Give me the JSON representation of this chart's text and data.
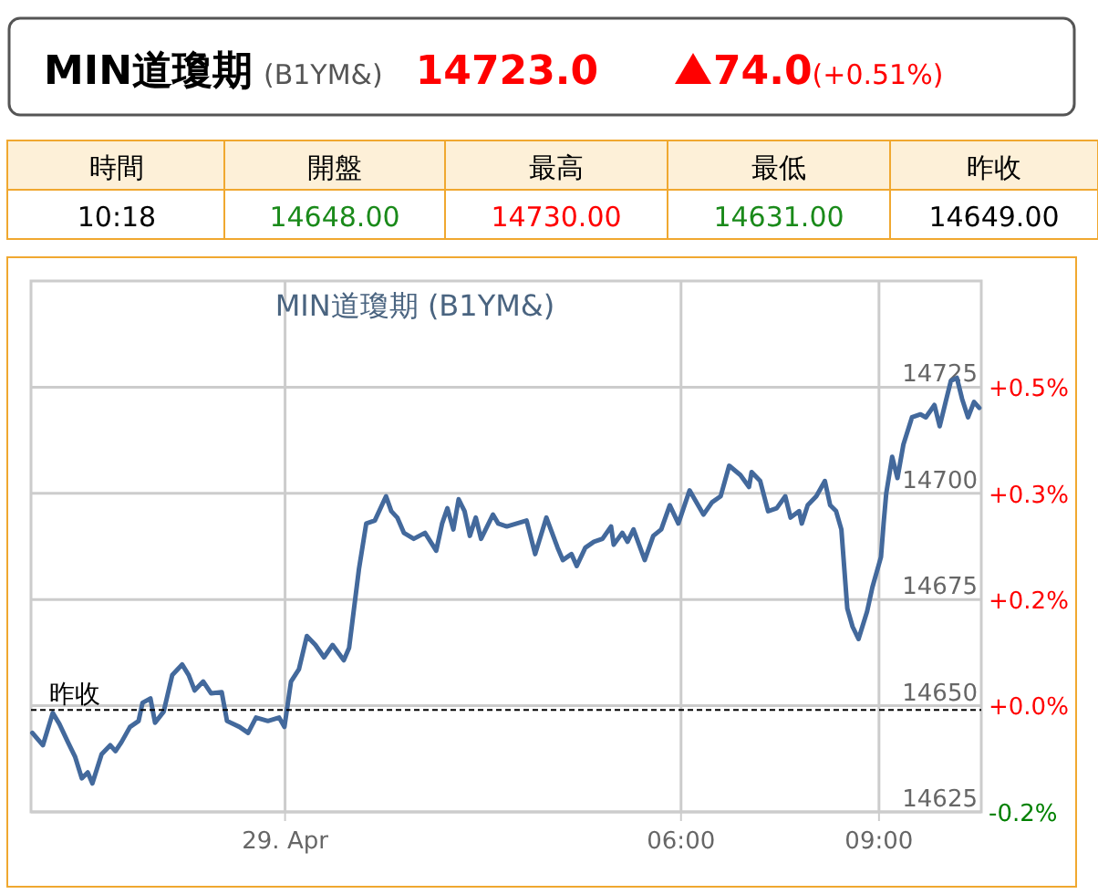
{
  "chart_data": {
    "type": "line",
    "title": "MIN道瓊期 (B1YM&)",
    "annotations": [
      "MIN道瓊期",
      "(B1YM&)",
      "14723.0",
      "74.0",
      "(+0.51%)",
      "時間",
      "開盤",
      "最高",
      "最低",
      "昨收",
      "10:18",
      "14648.00",
      "14730.00",
      "14631.00",
      "14649.00"
    ],
    "xlim": [
      -3.85,
      10.55
    ],
    "xticks": [
      {
        "value": 0,
        "label": "29. Apr"
      },
      {
        "value": 6,
        "label": "06:00"
      },
      {
        "value": 9,
        "label": "09:00"
      }
    ],
    "ylim": [
      14625,
      14750
    ],
    "yticks": [
      14625,
      14650,
      14675,
      14700,
      14725
    ],
    "y2lim": [
      -0.164,
      0.689
    ],
    "y2ticks": [
      {
        "value": -0.164,
        "label": "-0.2%"
      },
      {
        "value": 0.007,
        "label": "+0.0%"
      },
      {
        "value": 0.178,
        "label": "+0.2%"
      },
      {
        "value": 0.348,
        "label": "+0.3%"
      },
      {
        "value": 0.519,
        "label": "+0.5%"
      }
    ],
    "grid": true,
    "ref_lines": [
      {
        "axis": "y",
        "value": 14649,
        "label": "昨收",
        "color": "#000000",
        "line_style": "dashed"
      }
    ],
    "series": [
      {
        "color": "#43699c",
        "x": [
          -3.83,
          -3.67,
          -3.52,
          -3.42,
          -3.29,
          -3.18,
          -3.08,
          -2.99,
          -2.92,
          -2.78,
          -2.65,
          -2.57,
          -2.48,
          -2.35,
          -2.22,
          -2.16,
          -2.04,
          -1.97,
          -1.84,
          -1.71,
          -1.56,
          -1.46,
          -1.37,
          -1.24,
          -1.12,
          -0.96,
          -0.88,
          -0.69,
          -0.56,
          -0.44,
          -0.26,
          -0.09,
          -0.01,
          0.09,
          0.21,
          0.33,
          0.46,
          0.59,
          0.72,
          0.89,
          0.97,
          1.12,
          1.23,
          1.36,
          1.53,
          1.61,
          1.7,
          1.8,
          1.95,
          2.12,
          2.29,
          2.38,
          2.46,
          2.55,
          2.63,
          2.72,
          2.8,
          2.89,
          2.97,
          3.15,
          3.23,
          3.36,
          3.66,
          3.79,
          3.96,
          4.13,
          4.21,
          4.34,
          4.42,
          4.55,
          4.68,
          4.81,
          4.94,
          4.98,
          5.11,
          5.19,
          5.28,
          5.45,
          5.58,
          5.7,
          5.83,
          5.96,
          6.13,
          6.34,
          6.47,
          6.6,
          6.73,
          6.9,
          7.03,
          7.07,
          7.2,
          7.32,
          7.45,
          7.58,
          7.66,
          7.79,
          7.83,
          7.92,
          8.05,
          8.18,
          8.26,
          8.35,
          8.43,
          8.52,
          8.6,
          8.69,
          8.82,
          8.9,
          9.03,
          9.07,
          9.11,
          9.2,
          9.28,
          9.37,
          9.5,
          9.63,
          9.71,
          9.84,
          9.92,
          10.01,
          10.09,
          10.18,
          10.26,
          10.35,
          10.44,
          10.52
        ],
        "values": [
          14643.6,
          14640.7,
          14648.3,
          14645.7,
          14641.4,
          14637.9,
          14632.9,
          14634.3,
          14631.7,
          14638.6,
          14640.7,
          14639.3,
          14641.4,
          14645.0,
          14646.4,
          14650.7,
          14651.7,
          14646.0,
          14648.6,
          14657.2,
          14659.7,
          14657.2,
          14653.6,
          14655.7,
          14652.9,
          14653.2,
          14646.4,
          14645.0,
          14643.6,
          14647.2,
          14646.4,
          14647.2,
          14645.0,
          14655.7,
          14658.6,
          14666.4,
          14664.3,
          14661.4,
          14664.3,
          14660.7,
          14663.6,
          14682.2,
          14692.9,
          14693.6,
          14699.3,
          14695.8,
          14694.3,
          14690.7,
          14689.3,
          14690.7,
          14686.5,
          14692.9,
          14696.5,
          14691.5,
          14698.6,
          14695.8,
          14690.0,
          14694.3,
          14689.3,
          14695.0,
          14692.9,
          14692.2,
          14693.6,
          14685.7,
          14694.3,
          14687.2,
          14684.3,
          14685.7,
          14682.9,
          14687.2,
          14688.6,
          14689.3,
          14692.2,
          14687.9,
          14690.7,
          14688.6,
          14691.5,
          14684.3,
          14690.0,
          14691.5,
          14697.2,
          14692.9,
          14700.7,
          14695.0,
          14697.9,
          14699.3,
          14706.5,
          14704.3,
          14701.5,
          14705.0,
          14702.9,
          14695.8,
          14696.5,
          14699.3,
          14694.3,
          14695.8,
          14692.9,
          14697.2,
          14699.3,
          14702.9,
          14697.2,
          14695.8,
          14691.5,
          14672.9,
          14668.6,
          14665.7,
          14672.2,
          14677.9,
          14685.0,
          14692.9,
          14700.0,
          14708.6,
          14703.6,
          14711.5,
          14717.9,
          14718.6,
          14717.9,
          14720.8,
          14715.8,
          14721.5,
          14726.5,
          14727.2,
          14722.2,
          14717.9,
          14721.5,
          14720.1
        ]
      }
    ]
  }
}
